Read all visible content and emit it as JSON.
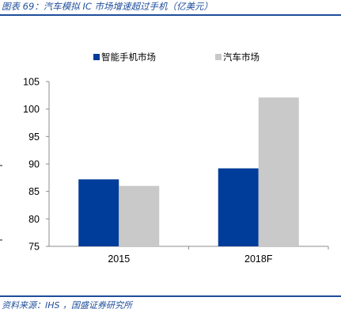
{
  "header": {
    "figure_title": "图表 69：汽车模拟 IC 市场增速超过手机（亿美元）"
  },
  "footer": {
    "source": "资料来源：IHS ，国盛证券研究所"
  },
  "colors": {
    "accent": "#1f4e9a",
    "series_smartphone": "#003C99",
    "series_auto": "#C9C9C9"
  },
  "chart_data": {
    "type": "bar",
    "title": "",
    "xlabel": "",
    "ylabel": "",
    "categories": [
      "2015",
      "2018F"
    ],
    "series": [
      {
        "name": "智能手机市场",
        "values": [
          87.2,
          89.2
        ]
      },
      {
        "name": "汽车市场",
        "values": [
          86.0,
          102.1
        ]
      }
    ],
    "ylim": [
      75,
      105
    ],
    "yticks": [
      75,
      80,
      85,
      90,
      95,
      100,
      105
    ],
    "grid": false,
    "legend_position": "top-center"
  }
}
